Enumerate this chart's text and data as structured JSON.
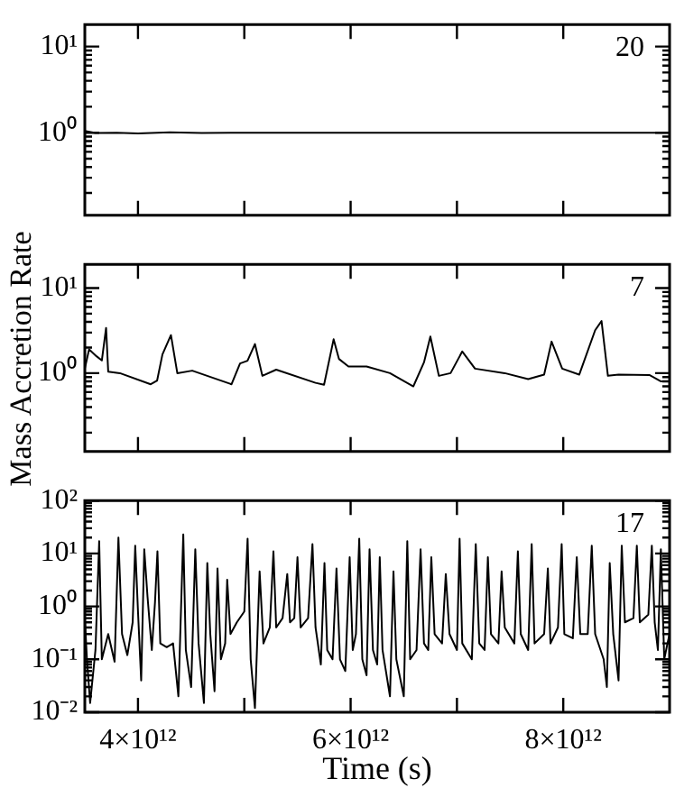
{
  "chart_data": [
    {
      "type": "line",
      "annotations": [
        "20"
      ],
      "log": "y",
      "marker": "none",
      "line_style": "solid",
      "tick_labels": "y",
      "xlim": [
        3500000000000.0,
        9000000000000.0
      ],
      "ylim": [
        0.11,
        18
      ],
      "xticks": [
        {
          "value": 4000000000000.0,
          "label": null
        },
        {
          "value": 5000000000000.0,
          "label": null
        },
        {
          "value": 6000000000000.0,
          "label": null
        },
        {
          "value": 7000000000000.0,
          "label": null
        },
        {
          "value": 8000000000000.0,
          "label": null
        }
      ],
      "yticks": [
        {
          "value": 0.2,
          "label": null
        },
        {
          "value": 0.3,
          "label": null
        },
        {
          "value": 0.4,
          "label": null
        },
        {
          "value": 0.5,
          "label": null
        },
        {
          "value": 0.6,
          "label": null
        },
        {
          "value": 0.7,
          "label": null
        },
        {
          "value": 0.8,
          "label": null
        },
        {
          "value": 0.9,
          "label": null
        },
        {
          "value": 1,
          "label": "10⁰"
        },
        {
          "value": 2,
          "label": null
        },
        {
          "value": 3,
          "label": null
        },
        {
          "value": 4,
          "label": null
        },
        {
          "value": 5,
          "label": null
        },
        {
          "value": 6,
          "label": null
        },
        {
          "value": 7,
          "label": null
        },
        {
          "value": 8,
          "label": null
        },
        {
          "value": 9,
          "label": null
        },
        {
          "value": 10,
          "label": "10¹"
        }
      ],
      "x": [
        3500000000000.0,
        3600000000000.0,
        3800000000000.0,
        4000000000000.0,
        4300000000000.0,
        4600000000000.0,
        5000000000000.0,
        5500000000000.0,
        6000000000000.0,
        7000000000000.0,
        8000000000000.0,
        9000000000000.0
      ],
      "series": [
        {
          "color": "#000000",
          "values": [
            1.05,
            0.99,
            1.0,
            0.98,
            1.01,
            0.99,
            1.0,
            1.0,
            1.0,
            1.0,
            1.0,
            1.0
          ]
        }
      ]
    },
    {
      "type": "line",
      "annotations": [
        "7"
      ],
      "ylabel": "Mass Accretion Rate",
      "log": "y",
      "marker": "none",
      "line_style": "solid",
      "tick_labels": "y",
      "xlim": [
        3500000000000.0,
        9000000000000.0
      ],
      "ylim": [
        0.12,
        19
      ],
      "xticks": [
        {
          "value": 4000000000000.0,
          "label": null
        },
        {
          "value": 5000000000000.0,
          "label": null
        },
        {
          "value": 6000000000000.0,
          "label": null
        },
        {
          "value": 7000000000000.0,
          "label": null
        },
        {
          "value": 8000000000000.0,
          "label": null
        }
      ],
      "yticks": [
        {
          "value": 0.2,
          "label": null
        },
        {
          "value": 0.3,
          "label": null
        },
        {
          "value": 0.4,
          "label": null
        },
        {
          "value": 0.5,
          "label": null
        },
        {
          "value": 0.6,
          "label": null
        },
        {
          "value": 0.7,
          "label": null
        },
        {
          "value": 0.8,
          "label": null
        },
        {
          "value": 0.9,
          "label": null
        },
        {
          "value": 1,
          "label": "10⁰"
        },
        {
          "value": 2,
          "label": null
        },
        {
          "value": 3,
          "label": null
        },
        {
          "value": 4,
          "label": null
        },
        {
          "value": 5,
          "label": null
        },
        {
          "value": 6,
          "label": null
        },
        {
          "value": 7,
          "label": null
        },
        {
          "value": 8,
          "label": null
        },
        {
          "value": 9,
          "label": null
        },
        {
          "value": 10,
          "label": "10¹"
        }
      ],
      "x": [
        3500000000000.0,
        3540000000000.0,
        3610000000000.0,
        3660000000000.0,
        3700000000000.0,
        3720000000000.0,
        3830000000000.0,
        4120000000000.0,
        4180000000000.0,
        4230000000000.0,
        4310000000000.0,
        4370000000000.0,
        4510000000000.0,
        4880000000000.0,
        4960000000000.0,
        5030000000000.0,
        5100000000000.0,
        5170000000000.0,
        5300000000000.0,
        5670000000000.0,
        5750000000000.0,
        5840000000000.0,
        5890000000000.0,
        5980000000000.0,
        6150000000000.0,
        6370000000000.0,
        6590000000000.0,
        6690000000000.0,
        6750000000000.0,
        6830000000000.0,
        6940000000000.0,
        7050000000000.0,
        7170000000000.0,
        7450000000000.0,
        7670000000000.0,
        7820000000000.0,
        7890000000000.0,
        7990000000000.0,
        8150000000000.0,
        8300000000000.0,
        8360000000000.0,
        8420000000000.0,
        8520000000000.0,
        8810000000000.0,
        8920000000000.0,
        8990000000000.0
      ],
      "series": [
        {
          "color": "#000000",
          "values": [
            1.13,
            1.9,
            1.58,
            1.41,
            3.4,
            1.04,
            1.0,
            0.74,
            0.82,
            1.66,
            2.8,
            1.0,
            1.07,
            0.74,
            1.3,
            1.4,
            2.2,
            0.93,
            1.1,
            0.77,
            0.73,
            2.5,
            1.47,
            1.2,
            1.2,
            1.0,
            0.7,
            1.34,
            2.7,
            0.93,
            1.0,
            1.8,
            1.13,
            1.0,
            0.85,
            0.96,
            2.35,
            1.13,
            0.96,
            3.2,
            4.1,
            0.93,
            0.96,
            0.95,
            0.8,
            0.8
          ]
        }
      ]
    },
    {
      "type": "line",
      "annotations": [
        "17"
      ],
      "xlabel": "Time (s)",
      "log": "y",
      "marker": "none",
      "line_style": "solid",
      "xlim": [
        3500000000000.0,
        9000000000000.0
      ],
      "ylim": [
        0.01,
        100
      ],
      "xticks": [
        {
          "value": 4000000000000.0,
          "label": "4×10¹²"
        },
        {
          "value": 5000000000000.0,
          "label": null
        },
        {
          "value": 6000000000000.0,
          "label": "6×10¹²"
        },
        {
          "value": 7000000000000.0,
          "label": null
        },
        {
          "value": 8000000000000.0,
          "label": "8×10¹²"
        }
      ],
      "yticks": [
        {
          "value": 0.01,
          "label": "10⁻²"
        },
        {
          "value": 0.02,
          "label": null
        },
        {
          "value": 0.03,
          "label": null
        },
        {
          "value": 0.04,
          "label": null
        },
        {
          "value": 0.05,
          "label": null
        },
        {
          "value": 0.06,
          "label": null
        },
        {
          "value": 0.07,
          "label": null
        },
        {
          "value": 0.08,
          "label": null
        },
        {
          "value": 0.09,
          "label": null
        },
        {
          "value": 0.1,
          "label": "10⁻¹"
        },
        {
          "value": 0.2,
          "label": null
        },
        {
          "value": 0.3,
          "label": null
        },
        {
          "value": 0.4,
          "label": null
        },
        {
          "value": 0.5,
          "label": null
        },
        {
          "value": 0.6,
          "label": null
        },
        {
          "value": 0.7,
          "label": null
        },
        {
          "value": 0.8,
          "label": null
        },
        {
          "value": 0.9,
          "label": null
        },
        {
          "value": 1,
          "label": "10⁰"
        },
        {
          "value": 2,
          "label": null
        },
        {
          "value": 3,
          "label": null
        },
        {
          "value": 4,
          "label": null
        },
        {
          "value": 5,
          "label": null
        },
        {
          "value": 6,
          "label": null
        },
        {
          "value": 7,
          "label": null
        },
        {
          "value": 8,
          "label": null
        },
        {
          "value": 9,
          "label": null
        },
        {
          "value": 10,
          "label": "10¹"
        },
        {
          "value": 20,
          "label": null
        },
        {
          "value": 30,
          "label": null
        },
        {
          "value": 40,
          "label": null
        },
        {
          "value": 50,
          "label": null
        },
        {
          "value": 60,
          "label": null
        },
        {
          "value": 70,
          "label": null
        },
        {
          "value": 80,
          "label": null
        },
        {
          "value": 90,
          "label": null
        },
        {
          "value": 100,
          "label": "10²"
        }
      ],
      "x": [
        3500000000000.0,
        3520000000000.0,
        3550000000000.0,
        3600000000000.0,
        3635000000000.0,
        3660000000000.0,
        3720000000000.0,
        3780000000000.0,
        3816000000000.0,
        3850000000000.0,
        3900000000000.0,
        3950000000000.0,
        3974000000000.0,
        4000000000000.0,
        4030000000000.0,
        4059000000000.0,
        4090000000000.0,
        4130000000000.0,
        4160000000000.0,
        4183000000000.0,
        4210000000000.0,
        4270000000000.0,
        4330000000000.0,
        4380000000000.0,
        4426000000000.0,
        4450000000000.0,
        4500000000000.0,
        4539000000000.0,
        4570000000000.0,
        4620000000000.0,
        4652000000000.0,
        4680000000000.0,
        4720000000000.0,
        4748000000000.0,
        4780000000000.0,
        4820000000000.0,
        4839000000000.0,
        4870000000000.0,
        4930000000000.0,
        5000000000000.0,
        5031000000000.0,
        5060000000000.0,
        5100000000000.0,
        5144000000000.0,
        5180000000000.0,
        5240000000000.0,
        5274000000000.0,
        5300000000000.0,
        5360000000000.0,
        5404000000000.0,
        5430000000000.0,
        5470000000000.0,
        5500000000000.0,
        5530000000000.0,
        5600000000000.0,
        5641000000000.0,
        5670000000000.0,
        5720000000000.0,
        5754000000000.0,
        5780000000000.0,
        5830000000000.0,
        5867000000000.0,
        5900000000000.0,
        5950000000000.0,
        5991000000000.0,
        6020000000000.0,
        6050000000000.0,
        6081000000000.0,
        6110000000000.0,
        6150000000000.0,
        6178000000000.0,
        6210000000000.0,
        6250000000000.0,
        6274000000000.0,
        6300000000000.0,
        6370000000000.0,
        6403000000000.0,
        6430000000000.0,
        6500000000000.0,
        6533000000000.0,
        6560000000000.0,
        6620000000000.0,
        6658000000000.0,
        6690000000000.0,
        6730000000000.0,
        6759000000000.0,
        6790000000000.0,
        6860000000000.0,
        6895000000000.0,
        6930000000000.0,
        7000000000000.0,
        7025000000000.0,
        7050000000000.0,
        7140000000000.0,
        7177000000000.0,
        7210000000000.0,
        7260000000000.0,
        7291000000000.0,
        7320000000000.0,
        7390000000000.0,
        7420000000000.0,
        7450000000000.0,
        7540000000000.0,
        7573000000000.0,
        7600000000000.0,
        7670000000000.0,
        7703000000000.0,
        7730000000000.0,
        7820000000000.0,
        7855000000000.0,
        7880000000000.0,
        7950000000000.0,
        7985000000000.0,
        8010000000000.0,
        8090000000000.0,
        8127000000000.0,
        8160000000000.0,
        8230000000000.0,
        8268000000000.0,
        8300000000000.0,
        8380000000000.0,
        8410000000000.0,
        8437000000000.0,
        8470000000000.0,
        8520000000000.0,
        8550000000000.0,
        8580000000000.0,
        8660000000000.0,
        8692000000000.0,
        8720000000000.0,
        8800000000000.0,
        8833000000000.0,
        8860000000000.0,
        8890000000000.0,
        8918000000000.0,
        8950000000000.0,
        8980000000000.0,
        9000000000000.0
      ],
      "series": [
        {
          "color": "#000000",
          "values": [
            0.6,
            0.1,
            0.015,
            0.15,
            17,
            0.1,
            0.3,
            0.09,
            20,
            0.3,
            0.12,
            0.5,
            14,
            0.8,
            0.04,
            12,
            1.5,
            0.15,
            1.2,
            11,
            0.2,
            0.17,
            0.2,
            0.02,
            23,
            0.15,
            0.03,
            12,
            0.2,
            0.015,
            6.6,
            0.3,
            0.025,
            5.2,
            0.1,
            0.2,
            3.2,
            0.3,
            0.5,
            0.8,
            19,
            0.1,
            0.012,
            4.6,
            0.2,
            0.4,
            11,
            0.4,
            0.6,
            4.1,
            0.5,
            0.6,
            8.5,
            0.4,
            0.6,
            15,
            0.4,
            0.08,
            6.6,
            0.15,
            0.1,
            5.2,
            0.1,
            0.06,
            8.5,
            0.15,
            0.3,
            19,
            0.1,
            0.05,
            12,
            0.15,
            0.08,
            8.5,
            0.15,
            0.02,
            4.6,
            0.1,
            0.02,
            17,
            0.1,
            0.15,
            12,
            0.2,
            0.15,
            8.5,
            0.3,
            0.2,
            4.1,
            0.3,
            0.15,
            19,
            0.2,
            0.1,
            15,
            0.2,
            0.15,
            8.5,
            0.3,
            0.2,
            4.6,
            0.4,
            0.2,
            11,
            0.3,
            0.15,
            15,
            0.2,
            0.3,
            5.2,
            0.2,
            0.4,
            15,
            0.3,
            0.25,
            8.5,
            0.3,
            0.3,
            14,
            0.3,
            0.1,
            0.03,
            6.6,
            0.3,
            0.04,
            14,
            0.5,
            0.6,
            14,
            0.5,
            0.7,
            14,
            0.5,
            0.15,
            12,
            0.1,
            0.2,
            0.3
          ]
        }
      ]
    }
  ]
}
